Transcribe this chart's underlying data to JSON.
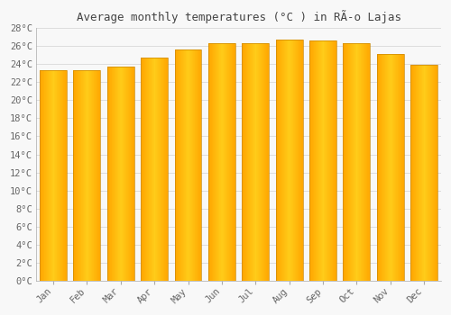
{
  "title": "Average monthly temperatures (°C ) in RÃ­o Lajas",
  "months": [
    "Jan",
    "Feb",
    "Mar",
    "Apr",
    "May",
    "Jun",
    "Jul",
    "Aug",
    "Sep",
    "Oct",
    "Nov",
    "Dec"
  ],
  "temperatures": [
    23.3,
    23.3,
    23.7,
    24.7,
    25.6,
    26.3,
    26.3,
    26.7,
    26.6,
    26.3,
    25.1,
    23.9
  ],
  "bar_color": "#FFA500",
  "bar_edge_color": "#CC8800",
  "ylim": [
    0,
    28
  ],
  "ytick_step": 2,
  "background_color": "#f8f8f8",
  "plot_bg_color": "#f8f8f8",
  "grid_color": "#dddddd",
  "tick_label_color": "#666666",
  "title_color": "#444444",
  "font_family": "monospace",
  "title_fontsize": 9
}
